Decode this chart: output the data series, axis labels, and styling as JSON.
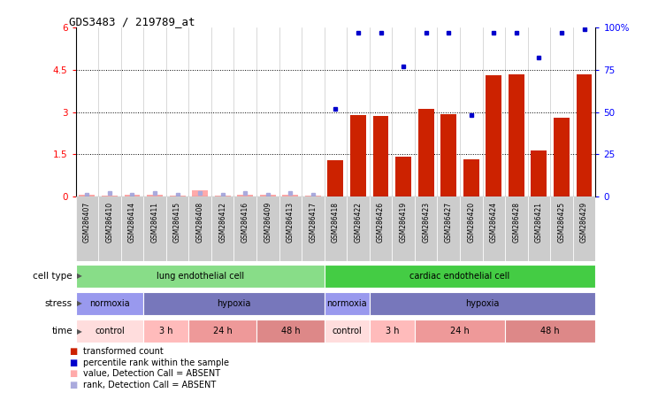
{
  "title": "GDS3483 / 219789_at",
  "samples": [
    "GSM286407",
    "GSM286410",
    "GSM286414",
    "GSM286411",
    "GSM286415",
    "GSM286408",
    "GSM286412",
    "GSM286416",
    "GSM286409",
    "GSM286413",
    "GSM286417",
    "GSM286418",
    "GSM286422",
    "GSM286426",
    "GSM286419",
    "GSM286423",
    "GSM286427",
    "GSM286420",
    "GSM286424",
    "GSM286428",
    "GSM286421",
    "GSM286425",
    "GSM286429"
  ],
  "bar_values": [
    0.05,
    0.04,
    0.05,
    0.05,
    0.04,
    0.22,
    0.04,
    0.06,
    0.05,
    0.05,
    0.04,
    1.3,
    2.9,
    2.85,
    1.42,
    3.1,
    2.92,
    1.32,
    4.3,
    4.35,
    1.62,
    2.8,
    4.35
  ],
  "bar_absent": [
    true,
    true,
    true,
    true,
    true,
    true,
    true,
    true,
    true,
    true,
    true,
    false,
    false,
    false,
    false,
    false,
    false,
    false,
    false,
    false,
    false,
    false,
    false
  ],
  "scatter_values_pct": [
    1,
    2,
    1,
    2,
    1,
    2,
    1,
    2,
    1,
    2,
    1,
    52,
    97,
    97,
    77,
    97,
    97,
    48,
    97,
    97,
    82,
    97,
    99
  ],
  "scatter_absent": [
    true,
    true,
    true,
    true,
    true,
    true,
    true,
    true,
    true,
    true,
    true,
    false,
    false,
    false,
    false,
    false,
    false,
    false,
    false,
    false,
    false,
    false,
    false
  ],
  "cell_type_groups": [
    {
      "label": "lung endothelial cell",
      "start": 0,
      "end": 11,
      "color": "#88DD88"
    },
    {
      "label": "cardiac endothelial cell",
      "start": 11,
      "end": 23,
      "color": "#44CC44"
    }
  ],
  "stress_groups": [
    {
      "label": "normoxia",
      "start": 0,
      "end": 3,
      "color": "#9999EE"
    },
    {
      "label": "hypoxia",
      "start": 3,
      "end": 11,
      "color": "#7777BB"
    },
    {
      "label": "normoxia",
      "start": 11,
      "end": 13,
      "color": "#9999EE"
    },
    {
      "label": "hypoxia",
      "start": 13,
      "end": 23,
      "color": "#7777BB"
    }
  ],
  "time_groups": [
    {
      "label": "control",
      "start": 0,
      "end": 3,
      "color": "#FFDDDD"
    },
    {
      "label": "3 h",
      "start": 3,
      "end": 5,
      "color": "#FFBBBB"
    },
    {
      "label": "24 h",
      "start": 5,
      "end": 8,
      "color": "#EE9999"
    },
    {
      "label": "48 h",
      "start": 8,
      "end": 11,
      "color": "#DD8888"
    },
    {
      "label": "control",
      "start": 11,
      "end": 13,
      "color": "#FFDDDD"
    },
    {
      "label": "3 h",
      "start": 13,
      "end": 15,
      "color": "#FFBBBB"
    },
    {
      "label": "24 h",
      "start": 15,
      "end": 19,
      "color": "#EE9999"
    },
    {
      "label": "48 h",
      "start": 19,
      "end": 23,
      "color": "#DD8888"
    }
  ],
  "ylim_left": [
    0,
    6
  ],
  "ylim_right": [
    0,
    100
  ],
  "yticks_left": [
    0,
    1.5,
    3.0,
    4.5,
    6.0
  ],
  "ytick_labels_left": [
    "0",
    "1.5",
    "3",
    "4.5",
    "6"
  ],
  "yticks_right": [
    0,
    25,
    50,
    75,
    100
  ],
  "ytick_labels_right": [
    "0",
    "25",
    "50",
    "75",
    "100%"
  ],
  "bar_color": "#CC2200",
  "bar_absent_color": "#FFAAAA",
  "scatter_color": "#0000CC",
  "scatter_absent_color": "#AAAADD",
  "bg_color": "#FFFFFF"
}
